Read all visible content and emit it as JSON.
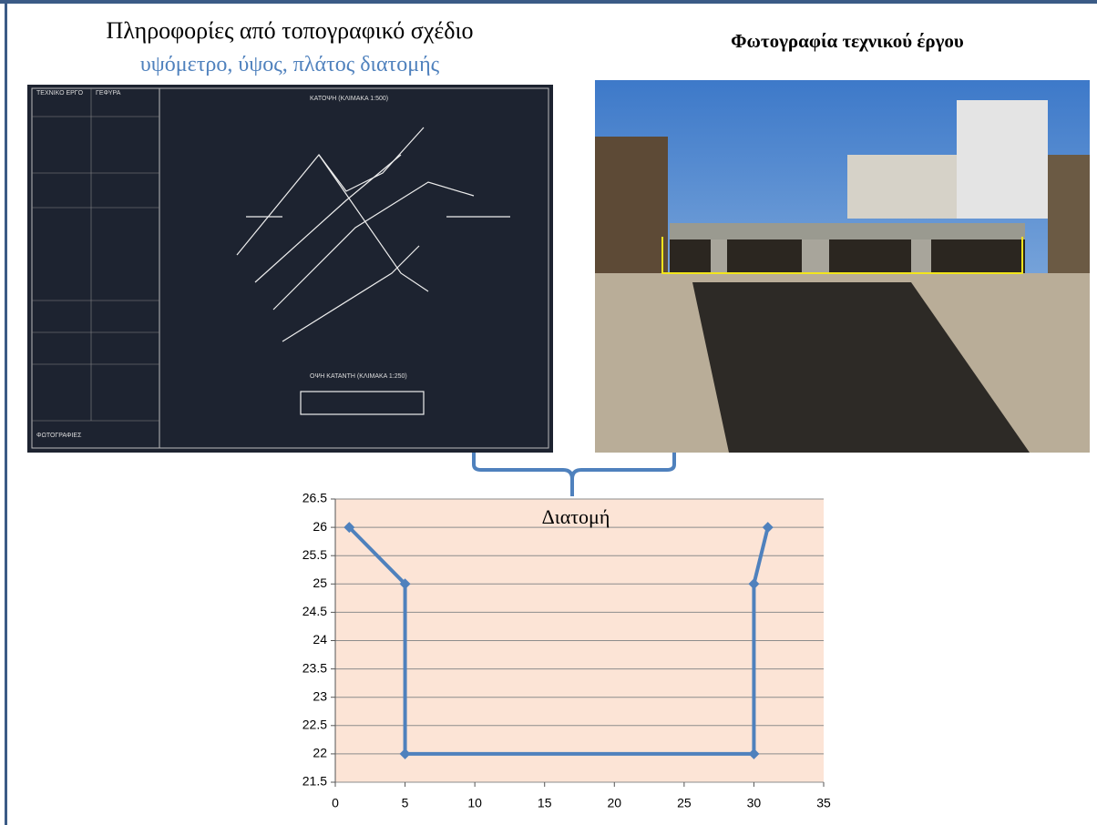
{
  "header": {
    "left_title": "Πληροφορίες από τοπογραφικό σχέδιο",
    "left_subtitle": "υψόμετρο, ύψος, πλάτος διατομής",
    "right_title": "Φωτογραφία τεχνικού έργου"
  },
  "drawing": {
    "labels": [
      "ΤΕΧΝΙΚΟ ΕΡΓΟ",
      "ΓΕΦΥΡΑ",
      "ΚΑΤΟΨΗ (ΚΛΙΜΑΚΑ 1:500)",
      "ΟΨΗ ΚΑΤΑΝΤΗ (ΚΛΙΜΑΚΑ 1:250)",
      "ΦΩΤΟΓΡΑΦΙΕΣ"
    ]
  },
  "chart_data": {
    "type": "line",
    "title": "Διατομή",
    "x": [
      1,
      5,
      5,
      30,
      30,
      31
    ],
    "series": [
      {
        "color": "#4f81bd",
        "values": [
          26,
          25,
          22,
          22,
          25,
          26
        ]
      }
    ],
    "xlim": [
      0,
      35
    ],
    "xticks": [
      0,
      5,
      10,
      15,
      20,
      25,
      30,
      35
    ],
    "ylim": [
      21.5,
      26.5
    ],
    "yticks": [
      21.5,
      22,
      22.5,
      23,
      23.5,
      24,
      24.5,
      25,
      25.5,
      26,
      26.5
    ],
    "grid": true,
    "background": "#fce4d6"
  }
}
